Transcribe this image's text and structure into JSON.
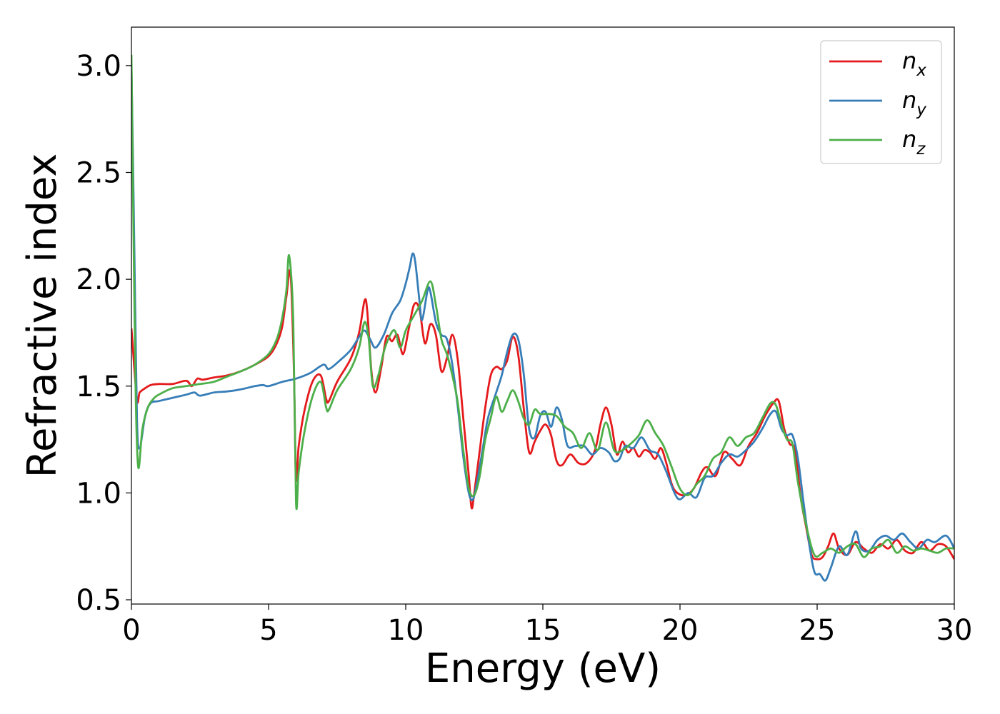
{
  "chart_data": {
    "type": "line",
    "xlabel": "Energy (eV)",
    "ylabel": "Refractive index",
    "xlim": [
      0,
      30
    ],
    "ylim": [
      0.48,
      3.18
    ],
    "xticks": [
      0,
      5,
      10,
      15,
      20,
      25,
      30
    ],
    "xtick_labels": [
      "0",
      "5",
      "10",
      "15",
      "20",
      "25",
      "30"
    ],
    "yticks": [
      0.5,
      1.0,
      1.5,
      2.0,
      2.5,
      3.0
    ],
    "ytick_labels": [
      "0.5",
      "1.0",
      "1.5",
      "2.0",
      "2.5",
      "3.0"
    ],
    "grid": false,
    "legend_position": "top-right",
    "series": [
      {
        "name": "n",
        "subscript": "x",
        "color": "#e41a1c",
        "x": [
          0,
          0.2,
          0.3,
          0.5,
          0.7,
          1.0,
          1.5,
          2.0,
          2.2,
          2.4,
          2.6,
          3.0,
          3.5,
          4.0,
          4.5,
          5.0,
          5.3,
          5.5,
          5.65,
          5.8,
          5.92,
          6.0,
          6.1,
          6.3,
          6.6,
          6.9,
          7.1,
          7.2,
          7.5,
          8.0,
          8.3,
          8.5,
          8.6,
          8.75,
          8.9,
          9.1,
          9.3,
          9.5,
          9.7,
          9.9,
          10.1,
          10.3,
          10.5,
          10.7,
          10.9,
          11.1,
          11.3,
          11.5,
          11.7,
          11.9,
          12.1,
          12.3,
          12.4,
          12.5,
          12.7,
          12.9,
          13.1,
          13.3,
          13.5,
          13.7,
          13.9,
          14.1,
          14.3,
          14.5,
          14.7,
          14.9,
          15.1,
          15.3,
          15.5,
          15.7,
          16.0,
          16.3,
          16.6,
          16.9,
          17.1,
          17.3,
          17.5,
          17.7,
          17.9,
          18.1,
          18.3,
          18.5,
          18.7,
          18.9,
          19.1,
          19.3,
          19.5,
          19.7,
          19.9,
          20.2,
          20.5,
          20.8,
          21.0,
          21.3,
          21.6,
          21.9,
          22.2,
          22.5,
          22.8,
          23.1,
          23.4,
          23.6,
          23.8,
          24.0,
          24.2,
          24.4,
          24.6,
          24.8,
          25.0,
          25.2,
          25.4,
          25.6,
          25.8,
          26.1,
          26.4,
          26.7,
          27.0,
          27.3,
          27.6,
          27.9,
          28.2,
          28.5,
          28.8,
          29.1,
          29.4,
          29.7,
          30.0
        ],
        "y": [
          1.77,
          1.44,
          1.47,
          1.49,
          1.505,
          1.51,
          1.51,
          1.525,
          1.5,
          1.535,
          1.53,
          1.54,
          1.55,
          1.57,
          1.6,
          1.64,
          1.7,
          1.78,
          1.92,
          2.03,
          1.6,
          1.07,
          1.22,
          1.38,
          1.52,
          1.55,
          1.44,
          1.43,
          1.52,
          1.63,
          1.75,
          1.9,
          1.85,
          1.57,
          1.47,
          1.58,
          1.73,
          1.71,
          1.74,
          1.65,
          1.76,
          1.88,
          1.86,
          1.7,
          1.79,
          1.74,
          1.57,
          1.63,
          1.74,
          1.62,
          1.35,
          1.08,
          0.93,
          1.0,
          1.2,
          1.4,
          1.55,
          1.59,
          1.58,
          1.62,
          1.73,
          1.65,
          1.4,
          1.19,
          1.24,
          1.29,
          1.32,
          1.27,
          1.15,
          1.13,
          1.18,
          1.14,
          1.14,
          1.2,
          1.32,
          1.4,
          1.32,
          1.18,
          1.24,
          1.19,
          1.21,
          1.17,
          1.2,
          1.19,
          1.16,
          1.21,
          1.14,
          1.04,
          1.0,
          0.99,
          1.02,
          1.1,
          1.12,
          1.08,
          1.19,
          1.16,
          1.13,
          1.22,
          1.28,
          1.36,
          1.42,
          1.43,
          1.3,
          1.23,
          1.2,
          0.98,
          0.84,
          0.71,
          0.69,
          0.7,
          0.75,
          0.81,
          0.74,
          0.71,
          0.77,
          0.74,
          0.72,
          0.76,
          0.74,
          0.78,
          0.73,
          0.72,
          0.77,
          0.73,
          0.76,
          0.75,
          0.69
        ]
      },
      {
        "name": "n",
        "subscript": "y",
        "color": "#377eb8",
        "x": [
          0,
          0.1,
          0.2,
          0.3,
          0.5,
          0.7,
          1.0,
          1.5,
          2.0,
          2.3,
          2.5,
          3.0,
          3.5,
          4.0,
          4.5,
          4.8,
          5.0,
          5.5,
          6.0,
          6.5,
          7.0,
          7.2,
          7.6,
          8.0,
          8.3,
          8.5,
          8.7,
          8.9,
          9.2,
          9.5,
          9.8,
          10.0,
          10.15,
          10.25,
          10.35,
          10.5,
          10.6,
          10.8,
          10.9,
          11.1,
          11.3,
          11.5,
          11.7,
          11.9,
          12.1,
          12.3,
          12.45,
          12.6,
          12.8,
          13.0,
          13.3,
          13.5,
          13.7,
          13.9,
          14.1,
          14.3,
          14.5,
          14.7,
          14.9,
          15.1,
          15.3,
          15.5,
          15.7,
          15.9,
          16.2,
          16.5,
          16.8,
          17.1,
          17.4,
          17.6,
          17.8,
          18.0,
          18.3,
          18.6,
          18.9,
          19.2,
          19.5,
          19.8,
          20.0,
          20.3,
          20.6,
          20.9,
          21.2,
          21.5,
          21.8,
          22.1,
          22.4,
          22.7,
          23.0,
          23.3,
          23.5,
          23.7,
          23.9,
          24.1,
          24.3,
          24.5,
          24.7,
          24.9,
          25.1,
          25.3,
          25.5,
          25.8,
          26.1,
          26.4,
          26.6,
          26.9,
          27.2,
          27.5,
          27.8,
          28.1,
          28.4,
          28.7,
          29.0,
          29.3,
          29.7,
          30.0
        ],
        "y": [
          3.0,
          2.2,
          1.35,
          1.21,
          1.36,
          1.42,
          1.43,
          1.445,
          1.46,
          1.47,
          1.455,
          1.47,
          1.475,
          1.485,
          1.5,
          1.505,
          1.5,
          1.52,
          1.535,
          1.56,
          1.6,
          1.58,
          1.62,
          1.67,
          1.73,
          1.76,
          1.72,
          1.68,
          1.74,
          1.84,
          1.9,
          1.98,
          2.06,
          2.12,
          2.08,
          1.9,
          1.81,
          1.95,
          1.94,
          1.8,
          1.74,
          1.72,
          1.6,
          1.4,
          1.17,
          1.0,
          0.97,
          1.05,
          1.2,
          1.35,
          1.47,
          1.55,
          1.66,
          1.74,
          1.72,
          1.56,
          1.3,
          1.26,
          1.36,
          1.38,
          1.31,
          1.4,
          1.34,
          1.22,
          1.22,
          1.22,
          1.18,
          1.21,
          1.19,
          1.15,
          1.16,
          1.22,
          1.21,
          1.26,
          1.2,
          1.18,
          1.1,
          1.0,
          0.97,
          1.0,
          0.98,
          1.07,
          1.08,
          1.14,
          1.18,
          1.17,
          1.2,
          1.24,
          1.3,
          1.37,
          1.38,
          1.3,
          1.27,
          1.27,
          1.16,
          0.96,
          0.77,
          0.63,
          0.62,
          0.59,
          0.65,
          0.75,
          0.71,
          0.82,
          0.74,
          0.73,
          0.78,
          0.8,
          0.78,
          0.81,
          0.77,
          0.74,
          0.78,
          0.77,
          0.8,
          0.74
        ]
      },
      {
        "name": "n",
        "subscript": "z",
        "color": "#4daf4a",
        "x": [
          0,
          0.05,
          0.15,
          0.25,
          0.4,
          0.6,
          0.8,
          1.0,
          1.5,
          2.0,
          2.5,
          3.0,
          3.5,
          4.0,
          4.5,
          5.0,
          5.3,
          5.5,
          5.65,
          5.75,
          5.9,
          6.0,
          6.1,
          6.3,
          6.6,
          6.9,
          7.1,
          7.2,
          7.5,
          8.0,
          8.3,
          8.5,
          8.65,
          8.8,
          9.0,
          9.2,
          9.4,
          9.6,
          9.8,
          10.0,
          10.3,
          10.6,
          10.9,
          11.1,
          11.3,
          11.5,
          11.7,
          11.9,
          12.1,
          12.3,
          12.5,
          12.7,
          12.9,
          13.1,
          13.3,
          13.5,
          13.7,
          13.9,
          14.1,
          14.3,
          14.5,
          14.7,
          14.9,
          15.2,
          15.5,
          15.8,
          16.1,
          16.4,
          16.7,
          17.0,
          17.3,
          17.6,
          17.9,
          18.2,
          18.5,
          18.8,
          19.1,
          19.4,
          19.7,
          20.0,
          20.3,
          20.6,
          20.9,
          21.2,
          21.5,
          21.8,
          22.1,
          22.4,
          22.7,
          23.0,
          23.3,
          23.5,
          23.7,
          23.9,
          24.1,
          24.3,
          24.6,
          24.9,
          25.2,
          25.5,
          25.8,
          26.1,
          26.4,
          26.7,
          27.0,
          27.3,
          27.6,
          27.9,
          28.2,
          28.5,
          28.8,
          29.1,
          29.4,
          29.7,
          30.0
        ],
        "y": [
          3.05,
          2.5,
          1.5,
          1.12,
          1.3,
          1.4,
          1.44,
          1.46,
          1.49,
          1.5,
          1.51,
          1.52,
          1.545,
          1.57,
          1.6,
          1.65,
          1.72,
          1.82,
          1.95,
          2.11,
          1.8,
          0.96,
          1.1,
          1.28,
          1.45,
          1.52,
          1.4,
          1.39,
          1.48,
          1.58,
          1.68,
          1.8,
          1.72,
          1.5,
          1.55,
          1.66,
          1.73,
          1.76,
          1.68,
          1.76,
          1.83,
          1.9,
          1.99,
          1.88,
          1.72,
          1.65,
          1.55,
          1.42,
          1.2,
          1.02,
          0.99,
          1.08,
          1.25,
          1.35,
          1.45,
          1.38,
          1.43,
          1.48,
          1.43,
          1.35,
          1.32,
          1.39,
          1.37,
          1.37,
          1.36,
          1.31,
          1.28,
          1.21,
          1.28,
          1.2,
          1.33,
          1.2,
          1.2,
          1.23,
          1.27,
          1.34,
          1.28,
          1.22,
          1.12,
          1.02,
          0.99,
          1.04,
          1.08,
          1.16,
          1.19,
          1.26,
          1.22,
          1.26,
          1.28,
          1.35,
          1.42,
          1.41,
          1.32,
          1.25,
          1.23,
          1.05,
          0.85,
          0.71,
          0.72,
          0.74,
          0.72,
          0.75,
          0.76,
          0.7,
          0.74,
          0.75,
          0.78,
          0.72,
          0.75,
          0.73,
          0.74,
          0.73,
          0.72,
          0.74,
          0.74
        ]
      }
    ]
  }
}
